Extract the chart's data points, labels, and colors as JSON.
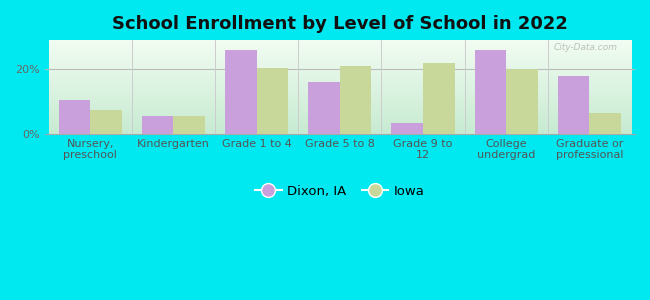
{
  "title": "School Enrollment by Level of School in 2022",
  "categories": [
    "Nursery,\npreschool",
    "Kindergarten",
    "Grade 1 to 4",
    "Grade 5 to 8",
    "Grade 9 to\n12",
    "College\nundergrad",
    "Graduate or\nprofessional"
  ],
  "dixon_values": [
    10.5,
    5.5,
    26,
    16,
    3.5,
    26,
    18
  ],
  "iowa_values": [
    7.5,
    5.5,
    20.5,
    21,
    22,
    20,
    6.5
  ],
  "dixon_color": "#c9a0dc",
  "iowa_color": "#c8d89a",
  "background_outer": "#00e8f0",
  "ylim": [
    0,
    29
  ],
  "ytick_positions": [
    0,
    20
  ],
  "ytick_labels": [
    "0%",
    "20%"
  ],
  "legend_labels": [
    "Dixon, IA",
    "Iowa"
  ],
  "title_fontsize": 13,
  "tick_fontsize": 8,
  "legend_fontsize": 9.5,
  "bar_width": 0.38,
  "watermark": "City-Data.com"
}
